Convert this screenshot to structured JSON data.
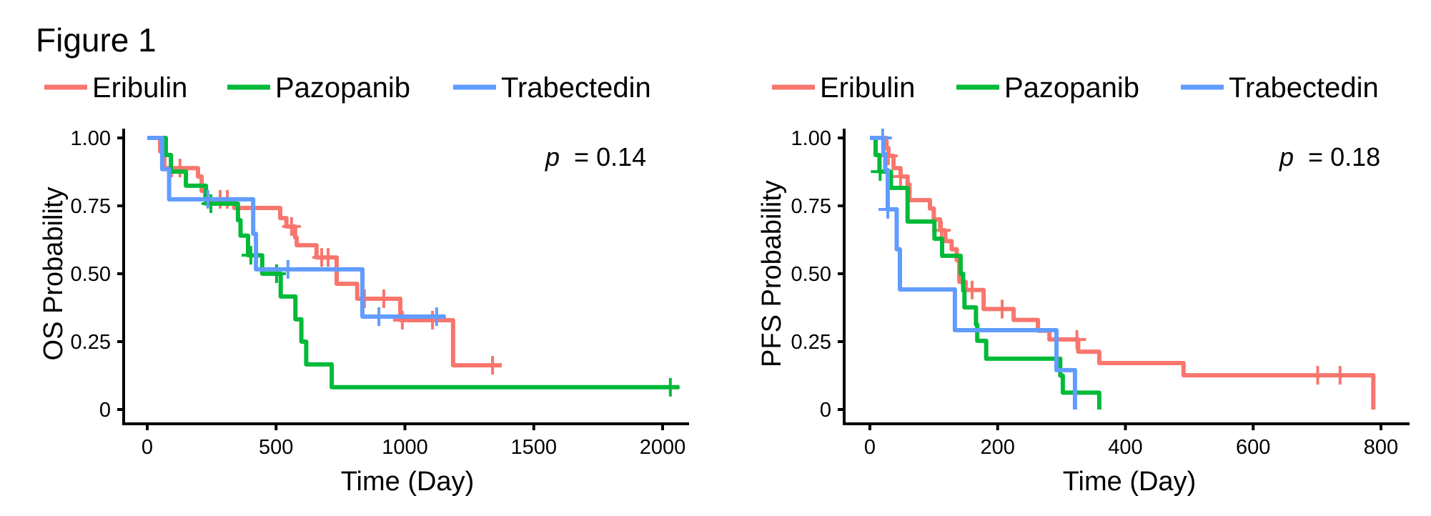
{
  "figure_title": "Figure 1",
  "colors": {
    "Eribulin": "#F8766D",
    "Pazopanib": "#00BA38",
    "Trabectedin": "#619CFF",
    "axis": "#000000"
  },
  "chart_data": [
    {
      "type": "line",
      "subtype": "kaplan-meier-step",
      "title": "",
      "xlabel": "Time (Day)",
      "ylabel": "OS Probability",
      "xlim": [
        0,
        2100
      ],
      "ylim": [
        0,
        1
      ],
      "xticks": [
        0,
        500,
        1000,
        1500,
        2000
      ],
      "xtick_labels": [
        "0",
        "500",
        "1000",
        "1500",
        "2000"
      ],
      "yticks": [
        0,
        0.25,
        0.5,
        0.75,
        1.0
      ],
      "ytick_labels": [
        "0",
        "0.25",
        "0.50",
        "0.75",
        "1.00"
      ],
      "grid": false,
      "legend": {
        "placement": "top",
        "entries": [
          "Eribulin",
          "Pazopanib",
          "Trabectedin"
        ]
      },
      "annotation": {
        "p_symbol": "p",
        "text": "= 0.14",
        "placement": "top-right"
      },
      "series": [
        {
          "name": "Eribulin",
          "steps": [
            [
              0,
              1
            ],
            [
              50,
              0.95
            ],
            [
              66,
              0.889
            ],
            [
              197,
              0.858
            ],
            [
              211,
              0.805
            ],
            [
              225,
              0.774
            ],
            [
              338,
              0.742
            ],
            [
              516,
              0.705
            ],
            [
              540,
              0.674
            ],
            [
              574,
              0.634
            ],
            [
              580,
              0.605
            ],
            [
              657,
              0.56
            ],
            [
              735,
              0.463
            ],
            [
              815,
              0.408
            ],
            [
              982,
              0.329
            ],
            [
              1187,
              0.163
            ]
          ],
          "end": 1376,
          "censored": [
            94,
            127,
            283,
            311,
            560,
            677,
            702,
            843,
            918,
            990,
            1107,
            1340
          ]
        },
        {
          "name": "Pazopanib",
          "steps": [
            [
              0,
              1
            ],
            [
              72,
              0.937
            ],
            [
              92,
              0.876
            ],
            [
              150,
              0.824
            ],
            [
              228,
              0.758
            ],
            [
              352,
              0.697
            ],
            [
              362,
              0.64
            ],
            [
              391,
              0.568
            ],
            [
              446,
              0.5
            ],
            [
              518,
              0.416
            ],
            [
              575,
              0.332
            ],
            [
              598,
              0.25
            ],
            [
              617,
              0.166
            ],
            [
              716,
              0.082
            ]
          ],
          "end": 2064,
          "censored": [
            247,
            402,
            502,
            2030
          ]
        },
        {
          "name": "Trabectedin",
          "steps": [
            [
              0,
              1
            ],
            [
              58,
              0.885
            ],
            [
              85,
              0.774
            ],
            [
              411,
              0.647
            ],
            [
              422,
              0.516
            ],
            [
              835,
              0.342
            ]
          ],
          "end": 1157,
          "censored": [
            235,
            546,
            899,
            1123
          ]
        }
      ]
    },
    {
      "type": "line",
      "subtype": "kaplan-meier-step",
      "title": "",
      "xlabel": "Time (Day)",
      "ylabel": "PFS Probability",
      "xlim": [
        0,
        840
      ],
      "ylim": [
        0,
        1
      ],
      "xticks": [
        0,
        200,
        400,
        600,
        800
      ],
      "xtick_labels": [
        "0",
        "200",
        "400",
        "600",
        "800"
      ],
      "yticks": [
        0,
        0.25,
        0.5,
        0.75,
        1.0
      ],
      "ytick_labels": [
        "0",
        "0.25",
        "0.50",
        "0.75",
        "1.00"
      ],
      "grid": false,
      "legend": {
        "placement": "top",
        "entries": [
          "Eribulin",
          "Pazopanib",
          "Trabectedin"
        ]
      },
      "annotation": {
        "p_symbol": "p",
        "text": "= 0.18",
        "placement": "top-right"
      },
      "series": [
        {
          "name": "Eribulin",
          "steps": [
            [
              0,
              1
            ],
            [
              26,
              0.963
            ],
            [
              29,
              0.934
            ],
            [
              37,
              0.889
            ],
            [
              48,
              0.858
            ],
            [
              59,
              0.829
            ],
            [
              62,
              0.771
            ],
            [
              94,
              0.74
            ],
            [
              100,
              0.7
            ],
            [
              110,
              0.66
            ],
            [
              118,
              0.62
            ],
            [
              128,
              0.59
            ],
            [
              136,
              0.55
            ],
            [
              140,
              0.47
            ],
            [
              150,
              0.44
            ],
            [
              178,
              0.37
            ],
            [
              225,
              0.33
            ],
            [
              263,
              0.29
            ],
            [
              281,
              0.258
            ],
            [
              326,
              0.213
            ],
            [
              359,
              0.171
            ],
            [
              491,
              0.126
            ],
            [
              788,
              0
            ]
          ],
          "end": 788,
          "censored": [
            29,
            48,
            112,
            160,
            207,
            324,
            701,
            736
          ]
        },
        {
          "name": "Pazopanib",
          "steps": [
            [
              0,
              1
            ],
            [
              9,
              0.937
            ],
            [
              15,
              0.876
            ],
            [
              33,
              0.816
            ],
            [
              59,
              0.692
            ],
            [
              101,
              0.629
            ],
            [
              113,
              0.566
            ],
            [
              142,
              0.5
            ],
            [
              146,
              0.437
            ],
            [
              148,
              0.376
            ],
            [
              166,
              0.313
            ],
            [
              168,
              0.253
            ],
            [
              182,
              0.187
            ],
            [
              298,
              0.125
            ],
            [
              302,
              0.062
            ],
            [
              359,
              0
            ]
          ],
          "end": 359,
          "censored": [
            16
          ]
        },
        {
          "name": "Trabectedin",
          "steps": [
            [
              0,
              1
            ],
            [
              21,
              0.94
            ],
            [
              24,
              0.882
            ],
            [
              28,
              0.737
            ],
            [
              42,
              0.59
            ],
            [
              47,
              0.442
            ],
            [
              133,
              0.292
            ],
            [
              292,
              0.145
            ],
            [
              321,
              0
            ]
          ],
          "end": 321,
          "censored": [
            20,
            28
          ]
        }
      ]
    }
  ]
}
